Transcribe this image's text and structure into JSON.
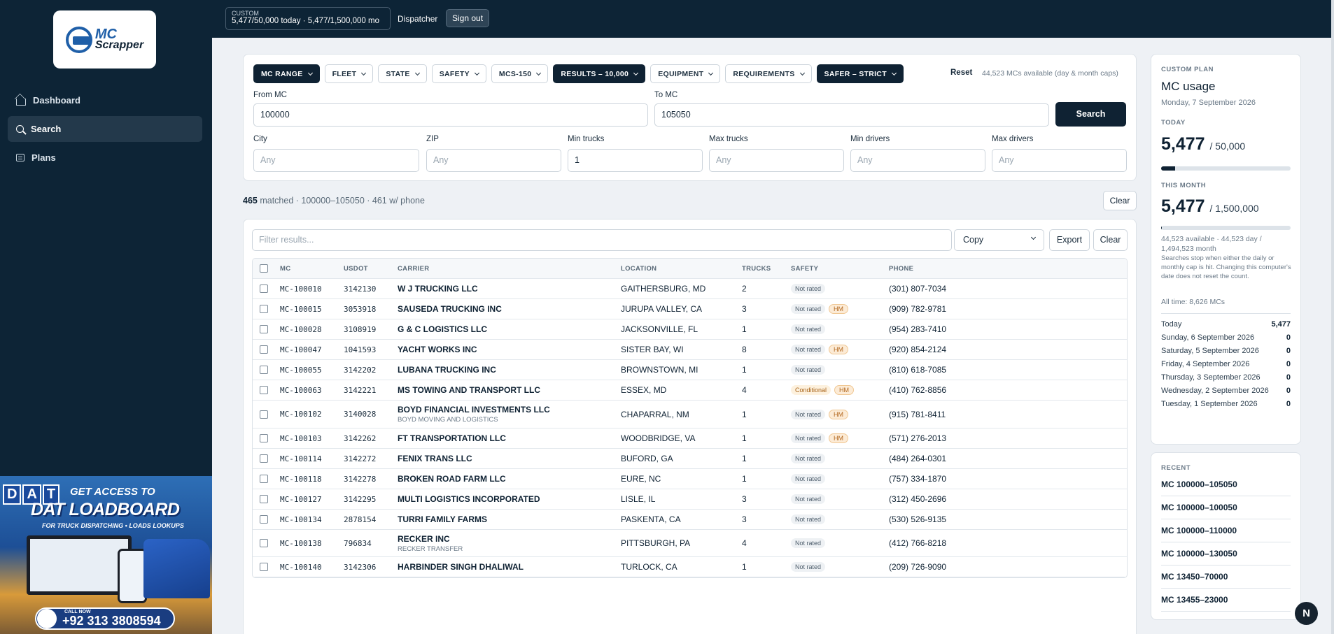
{
  "sidebar": {
    "logo_top": "MC",
    "logo_bottom": "Scrapper",
    "nav": [
      {
        "label": "Dashboard"
      },
      {
        "label": "Search"
      },
      {
        "label": "Plans"
      }
    ]
  },
  "ad": {
    "brand": [
      "D",
      "A",
      "T"
    ],
    "line1": "GET ACCESS TO",
    "line2": "DAT LOADBOARD",
    "line3": "FOR TRUCK DISPATCHING • LOADS LOOKUPS",
    "call_label": "CALL NOW",
    "phone": "+92 313 3808594"
  },
  "topbar": {
    "plan_label": "CUSTOM",
    "plan_usage": "5,477/50,000 today · 5,477/1,500,000 mo",
    "role": "Dispatcher",
    "signout": "Sign out"
  },
  "filters": {
    "chips": [
      {
        "label": "MC RANGE",
        "active": true
      },
      {
        "label": "FLEET",
        "active": false
      },
      {
        "label": "STATE",
        "active": false
      },
      {
        "label": "SAFETY",
        "active": false
      },
      {
        "label": "MCS-150",
        "active": false
      },
      {
        "label": "RESULTS – 10,000",
        "active": true
      },
      {
        "label": "EQUIPMENT",
        "active": false
      },
      {
        "label": "REQUIREMENTS",
        "active": false
      },
      {
        "label": "SAFER – STRICT",
        "active": true
      }
    ],
    "reset": "Reset",
    "available": "44,523 MCs available (day & month caps)",
    "from_mc_label": "From MC",
    "from_mc_value": "100000",
    "to_mc_label": "To MC",
    "to_mc_value": "105050",
    "search_button": "Search",
    "city_label": "City",
    "city_placeholder": "Any",
    "zip_label": "ZIP",
    "zip_placeholder": "Any",
    "min_trucks_label": "Min trucks",
    "min_trucks_value": "1",
    "max_trucks_label": "Max trucks",
    "max_trucks_placeholder": "Any",
    "min_drivers_label": "Min drivers",
    "min_drivers_placeholder": "Any",
    "max_drivers_label": "Max drivers",
    "max_drivers_placeholder": "Any"
  },
  "summary": {
    "count": "465",
    "text": "matched · 100000–105050 · 461 w/ phone",
    "clear": "Clear"
  },
  "results": {
    "filter_placeholder": "Filter results...",
    "copy_value": "Copy",
    "export": "Export",
    "clear": "Clear",
    "columns": {
      "mc": "MC",
      "usdot": "USDOT",
      "carrier": "CARRIER",
      "location": "LOCATION",
      "trucks": "TRUCKS",
      "safety": "SAFETY",
      "phone": "PHONE"
    },
    "rows": [
      {
        "mc": "MC-100010",
        "usdot": "3142130",
        "carrier": "W J TRUCKING LLC",
        "dba": "",
        "location": "GAITHERSBURG, MD",
        "trucks": "2",
        "safety": "Not rated",
        "hm": "",
        "phone": "(301) 807-7034"
      },
      {
        "mc": "MC-100015",
        "usdot": "3053918",
        "carrier": "SAUSEDA TRUCKING INC",
        "dba": "",
        "location": "JURUPA VALLEY, CA",
        "trucks": "3",
        "safety": "Not rated",
        "hm": "HM",
        "phone": "(909) 782-9781"
      },
      {
        "mc": "MC-100028",
        "usdot": "3108919",
        "carrier": "G & C LOGISTICS LLC",
        "dba": "",
        "location": "JACKSONVILLE, FL",
        "trucks": "1",
        "safety": "Not rated",
        "hm": "",
        "phone": "(954) 283-7410"
      },
      {
        "mc": "MC-100047",
        "usdot": "1041593",
        "carrier": "YACHT WORKS INC",
        "dba": "",
        "location": "SISTER BAY, WI",
        "trucks": "8",
        "safety": "Not rated",
        "hm": "HM",
        "phone": "(920) 854-2124"
      },
      {
        "mc": "MC-100055",
        "usdot": "3142202",
        "carrier": "LUBANA TRUCKING INC",
        "dba": "",
        "location": "BROWNSTOWN, MI",
        "trucks": "1",
        "safety": "Not rated",
        "hm": "",
        "phone": "(810) 618-7085"
      },
      {
        "mc": "MC-100063",
        "usdot": "3142221",
        "carrier": "MS TOWING AND TRANSPORT LLC",
        "dba": "",
        "location": "ESSEX, MD",
        "trucks": "4",
        "safety": "Conditional",
        "hm": "HM",
        "phone": "(410) 762-8856"
      },
      {
        "mc": "MC-100102",
        "usdot": "3140028",
        "carrier": "BOYD FINANCIAL INVESTMENTS LLC",
        "dba": "BOYD MOVING AND LOGISTICS",
        "location": "CHAPARRAL, NM",
        "trucks": "1",
        "safety": "Not rated",
        "hm": "HM",
        "phone": "(915) 781-8411"
      },
      {
        "mc": "MC-100103",
        "usdot": "3142262",
        "carrier": "FT TRANSPORTATION LLC",
        "dba": "",
        "location": "WOODBRIDGE, VA",
        "trucks": "1",
        "safety": "Not rated",
        "hm": "HM",
        "phone": "(571) 276-2013"
      },
      {
        "mc": "MC-100114",
        "usdot": "3142272",
        "carrier": "FENIX TRANS LLC",
        "dba": "",
        "location": "BUFORD, GA",
        "trucks": "1",
        "safety": "Not rated",
        "hm": "",
        "phone": "(484) 264-0301"
      },
      {
        "mc": "MC-100118",
        "usdot": "3142278",
        "carrier": "BROKEN ROAD FARM LLC",
        "dba": "",
        "location": "EURE, NC",
        "trucks": "1",
        "safety": "Not rated",
        "hm": "",
        "phone": "(757) 334-1870"
      },
      {
        "mc": "MC-100127",
        "usdot": "3142295",
        "carrier": "MULTI LOGISTICS INCORPORATED",
        "dba": "",
        "location": "LISLE, IL",
        "trucks": "3",
        "safety": "Not rated",
        "hm": "",
        "phone": "(312) 450-2696"
      },
      {
        "mc": "MC-100134",
        "usdot": "2878154",
        "carrier": "TURRI FAMILY FARMS",
        "dba": "",
        "location": "PASKENTA, CA",
        "trucks": "3",
        "safety": "Not rated",
        "hm": "",
        "phone": "(530) 526-9135"
      },
      {
        "mc": "MC-100138",
        "usdot": "796834",
        "carrier": "RECKER INC",
        "dba": "RECKER TRANSFER",
        "location": "PITTSBURGH, PA",
        "trucks": "4",
        "safety": "Not rated",
        "hm": "",
        "phone": "(412) 766-8218"
      },
      {
        "mc": "MC-100140",
        "usdot": "3142306",
        "carrier": "HARBINDER SINGH DHALIWAL",
        "dba": "",
        "location": "TURLOCK, CA",
        "trucks": "1",
        "safety": "Not rated",
        "hm": "",
        "phone": "(209) 726-9090"
      }
    ]
  },
  "usage": {
    "eyebrow": "CUSTOM PLAN",
    "title": "MC usage",
    "date": "Monday, 7 September 2026",
    "today_label": "TODAY",
    "today_value": "5,477",
    "today_cap": "/ 50,000",
    "today_fraction": 0.1095,
    "month_label": "THIS MONTH",
    "month_value": "5,477",
    "month_cap": "/ 1,500,000",
    "month_fraction": 0.0037,
    "available_note": "44,523 available · 44,523 day / 1,494,523 month",
    "stop_note": "Searches stop when either the daily or monthly cap is hit. Changing this computer's date does not reset the count.",
    "all_time": "All time: 8,626 MCs",
    "days": [
      {
        "label": "Today",
        "value": "5,477"
      },
      {
        "label": "Sunday, 6 September 2026",
        "value": "0"
      },
      {
        "label": "Saturday, 5 September 2026",
        "value": "0"
      },
      {
        "label": "Friday, 4 September 2026",
        "value": "0"
      },
      {
        "label": "Thursday, 3 September 2026",
        "value": "0"
      },
      {
        "label": "Wednesday, 2 September 2026",
        "value": "0"
      },
      {
        "label": "Tuesday, 1 September 2026",
        "value": "0"
      }
    ]
  },
  "recent": {
    "eyebrow": "RECENT",
    "items": [
      "MC 100000–105050",
      "MC 100000–100050",
      "MC 100000–110000",
      "MC 100000–130050",
      "MC 13450–70000",
      "MC 13455–23000"
    ]
  },
  "help": "N"
}
